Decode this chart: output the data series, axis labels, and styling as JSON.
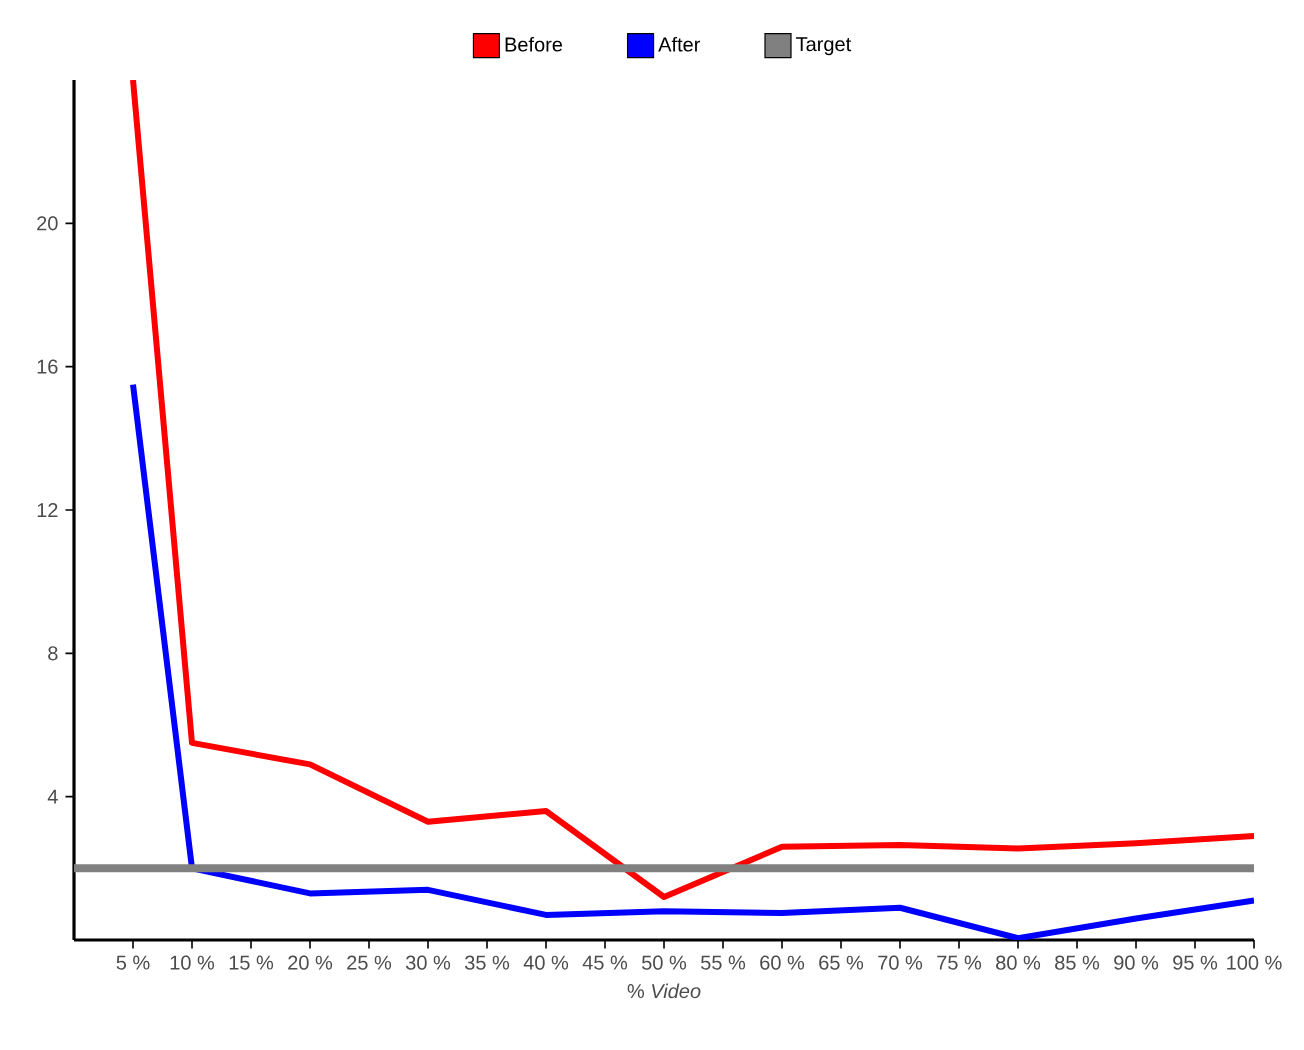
{
  "chart_data": {
    "type": "line",
    "xlabel": "% *Video*",
    "x": [
      5,
      10,
      20,
      30,
      40,
      50,
      60,
      70,
      80,
      90,
      100
    ],
    "series": [
      {
        "name": "Before",
        "color": "#ff0000",
        "values": [
          24,
          5.5,
          4.9,
          3.3,
          3.6,
          1.2,
          2.6,
          2.65,
          2.55,
          2.7,
          2.9
        ]
      },
      {
        "name": "After",
        "color": "#0000ff",
        "values": [
          15.5,
          2.0,
          1.3,
          1.4,
          0.7,
          0.8,
          0.75,
          0.9,
          0.05,
          0.6,
          1.1
        ]
      }
    ],
    "ref_lines": [
      {
        "axis": "y",
        "value": 2,
        "label": "Target",
        "color": "#808080"
      }
    ],
    "xlim": [
      0,
      100
    ],
    "xticks": [
      {
        "value": 5,
        "label": "5 %"
      },
      {
        "value": 10,
        "label": "10 %"
      },
      {
        "value": 15,
        "label": "15 %"
      },
      {
        "value": 20,
        "label": "20 %"
      },
      {
        "value": 25,
        "label": "25 %"
      },
      {
        "value": 30,
        "label": "30 %"
      },
      {
        "value": 35,
        "label": "35 %"
      },
      {
        "value": 40,
        "label": "40 %"
      },
      {
        "value": 45,
        "label": "45 %"
      },
      {
        "value": 50,
        "label": "50 %"
      },
      {
        "value": 55,
        "label": "55 %"
      },
      {
        "value": 60,
        "label": "60 %"
      },
      {
        "value": 65,
        "label": "65 %"
      },
      {
        "value": 70,
        "label": "70 %"
      },
      {
        "value": 75,
        "label": "75 %"
      },
      {
        "value": 80,
        "label": "80 %"
      },
      {
        "value": 85,
        "label": "85 %"
      },
      {
        "value": 90,
        "label": "90 %"
      },
      {
        "value": 95,
        "label": "95 %"
      },
      {
        "value": 100,
        "label": "100 %"
      }
    ],
    "ylim": [
      0,
      24
    ],
    "yticks": [
      4,
      8,
      12,
      16,
      20
    ],
    "legend": "top",
    "grid": false,
    "marker": "none",
    "line_style": "solid"
  }
}
